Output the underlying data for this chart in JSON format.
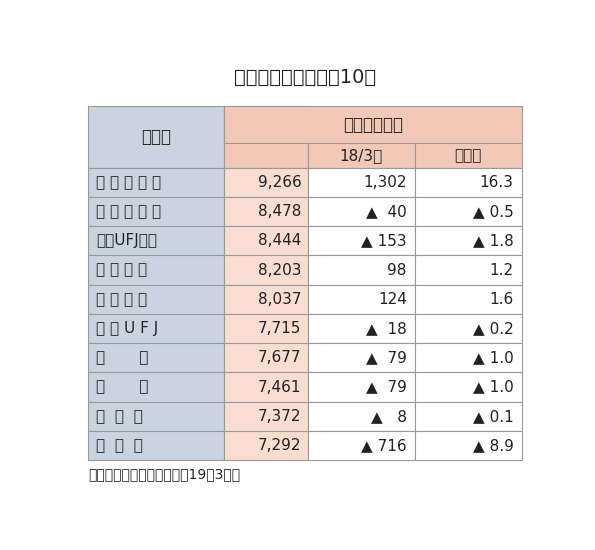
{
  "title": "平均年間給与　上众10行",
  "col_header_main": "平均年間給与",
  "col_header_bank": "銀行名",
  "col_header_sub0": "18/3比",
  "col_header_sub1": "増加率",
  "rows": [
    {
      "bank": "東 京 ス タ ー",
      "value": "9,266",
      "change": "1,302",
      "rate": "16.3",
      "neg_change": false,
      "neg_rate": false
    },
    {
      "bank": "み ず ほ 信 託",
      "value": "8,478",
      "change": "▲  40",
      "rate": "▲ 0.5",
      "neg_change": true,
      "neg_rate": true
    },
    {
      "bank": "三菱UFJ信託",
      "value": "8,444",
      "change": "▲ 153",
      "rate": "▲ 1.8",
      "neg_change": true,
      "neg_rate": true
    },
    {
      "bank": "三 井 住 友",
      "value": "8,203",
      "change": "98",
      "rate": "1.2",
      "neg_change": false,
      "neg_rate": false
    },
    {
      "bank": "あ お ぞ ら",
      "value": "8,037",
      "change": "124",
      "rate": "1.6",
      "neg_change": false,
      "neg_rate": false
    },
    {
      "bank": "三 菱 U F J",
      "value": "7,715",
      "change": "▲  18",
      "rate": "▲ 0.2",
      "neg_change": true,
      "neg_rate": true
    },
    {
      "bank": "新       生",
      "value": "7,677",
      "change": "▲  79",
      "rate": "▲ 1.0",
      "neg_change": true,
      "neg_rate": true
    },
    {
      "bank": "静       岡",
      "value": "7,461",
      "change": "▲  79",
      "rate": "▲ 1.0",
      "neg_change": true,
      "neg_rate": true
    },
    {
      "bank": "み  ず  ほ",
      "value": "7,372",
      "change": "▲   8",
      "rate": "▲ 0.1",
      "neg_change": true,
      "neg_rate": true
    },
    {
      "bank": "ス  ル  ガ",
      "value": "7,292",
      "change": "▲ 716",
      "rate": "▲ 8.9",
      "neg_change": true,
      "neg_rate": true
    }
  ],
  "note": "（注）　単位：千円、％、19年3月期",
  "bg_header_bank": "#c9d4e0",
  "bg_header_main": "#f2c9b8",
  "bg_value_col": "#f9ddd0",
  "bg_white": "#ffffff",
  "border_color": "#999999",
  "text_color": "#222222",
  "fig_width": 5.95,
  "fig_height": 5.5,
  "dpi": 100
}
